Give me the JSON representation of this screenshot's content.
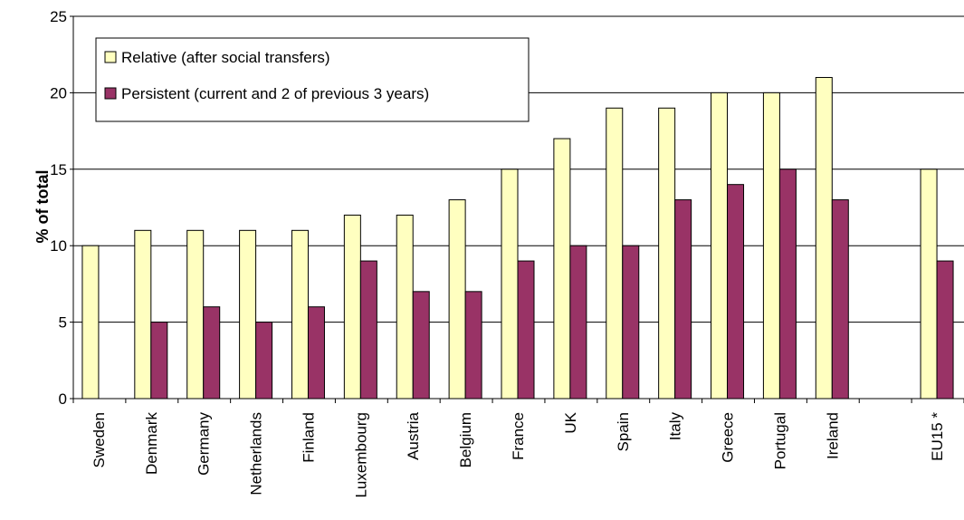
{
  "chart_data": {
    "type": "bar",
    "title": "",
    "ylabel": "% of total",
    "xlabel": "",
    "ylim": [
      0,
      25
    ],
    "yticks": [
      0,
      5,
      10,
      15,
      20,
      25
    ],
    "grid": "horizontal",
    "legend_position": "top-left",
    "categories": [
      "Sweden",
      "Denmark",
      "Germany",
      "Netherlands",
      "Finland",
      "Luxembourg",
      "Austria",
      "Belgium",
      "France",
      "UK",
      "Spain",
      "Italy",
      "Greece",
      "Portugal",
      "Ireland",
      "",
      "EU15 *"
    ],
    "series": [
      {
        "name": "Relative (after social transfers)",
        "color": "#ffffc0",
        "values": [
          10,
          11,
          11,
          11,
          11,
          12,
          12,
          13,
          15,
          17,
          19,
          19,
          20,
          20,
          21,
          null,
          15
        ]
      },
      {
        "name": "Persistent (current and 2 of previous 3 years)",
        "color": "#993366",
        "values": [
          null,
          5,
          6,
          5,
          6,
          9,
          7,
          7,
          9,
          10,
          10,
          13,
          14,
          15,
          13,
          null,
          9
        ]
      }
    ]
  }
}
